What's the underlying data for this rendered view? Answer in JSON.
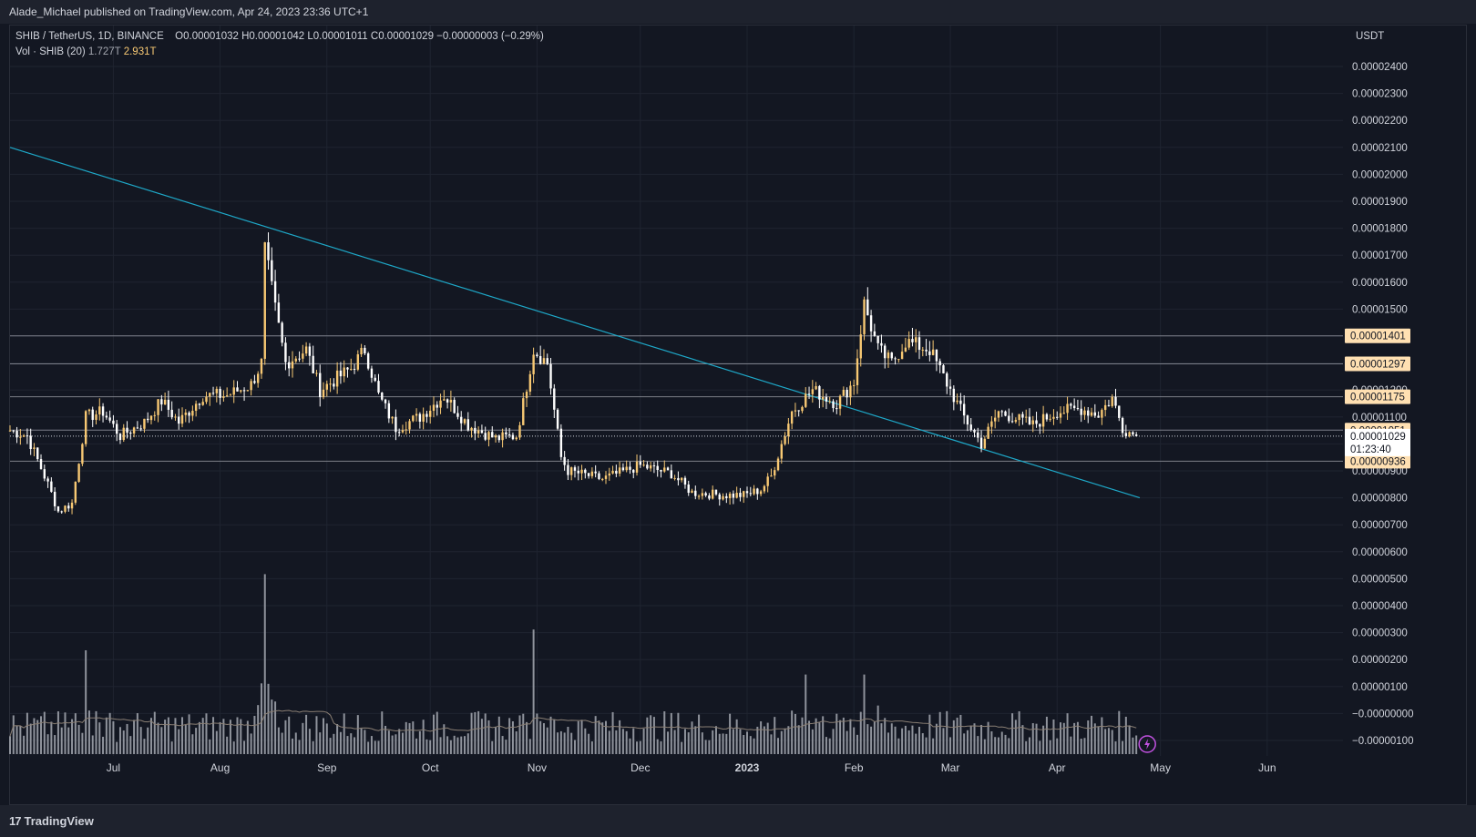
{
  "header": {
    "publisher_text": "Alade_Michael published on TradingView.com, Apr 24, 2023 23:36 UTC+1"
  },
  "legend": {
    "symbol": "SHIB / TetherUS, 1D, BINANCE",
    "open_label": "O",
    "open": "0.00001032",
    "high_label": "H",
    "high": "0.00001042",
    "low_label": "L",
    "low": "0.00001011",
    "close_label": "C",
    "close": "0.00001029",
    "change": "−0.00000003 (−0.29%)",
    "vol_label": "Vol · SHIB (20)",
    "vol_value1": "1.727T",
    "vol_value2": "2.931T"
  },
  "currency": "USDT",
  "footer": {
    "brand": "TradingView",
    "mark": "17"
  },
  "colors": {
    "background": "#131722",
    "grid": "#1f2430",
    "up_candle": "#f7c873",
    "down_candle": "#ffffff",
    "trendline": "#1ea8c8",
    "hline": "#9598a1",
    "label_bg": "#ffe0b2",
    "volume_bar": "#8f939c",
    "volume_ma": "#8a7f74",
    "spark": "#c252e1"
  },
  "chart_data": {
    "type": "candlestick",
    "symbol": "SHIB / TetherUS",
    "interval": "1D",
    "x_range": [
      "2022-06-01",
      "2023-06-23"
    ],
    "x_ticks": [
      "Jul",
      "Aug",
      "Sep",
      "Oct",
      "Nov",
      "Dec",
      "2023",
      "Feb",
      "Mar",
      "Apr",
      "May",
      "Jun"
    ],
    "y_range": [
      -1e-07,
      2.5e-05
    ],
    "y_ticks": [
      "0.00002400",
      "0.00002300",
      "0.00002200",
      "0.00002100",
      "0.00002000",
      "0.00001900",
      "0.00001800",
      "0.00001700",
      "0.00001600",
      "0.00001500",
      "0.00001400",
      "0.00001300",
      "0.00001200",
      "0.00001100",
      "0.00001000",
      "0.00000900",
      "0.00000800",
      "0.00000700",
      "0.00000600",
      "0.00000500",
      "0.00000400",
      "0.00000300",
      "0.00000200",
      "0.00000100",
      "−0.00000000",
      "−0.00000100"
    ],
    "close_anchors": [
      [
        "2022-06-01",
        1.05e-05
      ],
      [
        "2022-06-06",
        1.03e-05
      ],
      [
        "2022-06-12",
        8.5e-06
      ],
      [
        "2022-06-15",
        7.5e-06
      ],
      [
        "2022-06-19",
        7.8e-06
      ],
      [
        "2022-06-23",
        1.1e-05
      ],
      [
        "2022-06-28",
        1.12e-05
      ],
      [
        "2022-07-03",
        1.03e-05
      ],
      [
        "2022-07-10",
        1.08e-05
      ],
      [
        "2022-07-15",
        1.16e-05
      ],
      [
        "2022-07-20",
        1.08e-05
      ],
      [
        "2022-07-27",
        1.18e-05
      ],
      [
        "2022-08-03",
        1.18e-05
      ],
      [
        "2022-08-10",
        1.22e-05
      ],
      [
        "2022-08-13",
        1.3e-05
      ],
      [
        "2022-08-14",
        1.72e-05
      ],
      [
        "2022-08-17",
        1.5e-05
      ],
      [
        "2022-08-20",
        1.3e-05
      ],
      [
        "2022-08-26",
        1.35e-05
      ],
      [
        "2022-08-30",
        1.2e-05
      ],
      [
        "2022-09-08",
        1.28e-05
      ],
      [
        "2022-09-12",
        1.35e-05
      ],
      [
        "2022-09-16",
        1.18e-05
      ],
      [
        "2022-09-21",
        1.06e-05
      ],
      [
        "2022-09-28",
        1.1e-05
      ],
      [
        "2022-10-05",
        1.18e-05
      ],
      [
        "2022-10-12",
        1.07e-05
      ],
      [
        "2022-10-20",
        1.02e-05
      ],
      [
        "2022-10-26",
        1.03e-05
      ],
      [
        "2022-10-28",
        1.15e-05
      ],
      [
        "2022-10-31",
        1.35e-05
      ],
      [
        "2022-11-04",
        1.3e-05
      ],
      [
        "2022-11-08",
        9.5e-06
      ],
      [
        "2022-11-10",
        9e-06
      ],
      [
        "2022-11-20",
        8.7e-06
      ],
      [
        "2022-12-01",
        9.2e-06
      ],
      [
        "2022-12-10",
        8.9e-06
      ],
      [
        "2022-12-16",
        8.2e-06
      ],
      [
        "2022-12-25",
        8.1e-06
      ],
      [
        "2022-12-31",
        8.1e-06
      ],
      [
        "2023-01-05",
        8.3e-06
      ],
      [
        "2023-01-08",
        8.8e-06
      ],
      [
        "2023-01-14",
        1.12e-05
      ],
      [
        "2023-01-20",
        1.2e-05
      ],
      [
        "2023-01-27",
        1.15e-05
      ],
      [
        "2023-02-01",
        1.23e-05
      ],
      [
        "2023-02-04",
        1.52e-05
      ],
      [
        "2023-02-08",
        1.35e-05
      ],
      [
        "2023-02-12",
        1.3e-05
      ],
      [
        "2023-02-16",
        1.38e-05
      ],
      [
        "2023-02-23",
        1.35e-05
      ],
      [
        "2023-03-01",
        1.2e-05
      ],
      [
        "2023-03-05",
        1.1e-05
      ],
      [
        "2023-03-10",
        1e-05
      ],
      [
        "2023-03-15",
        1.12e-05
      ],
      [
        "2023-03-25",
        1.07e-05
      ],
      [
        "2023-04-01",
        1.12e-05
      ],
      [
        "2023-04-08",
        1.13e-05
      ],
      [
        "2023-04-13",
        1.11e-05
      ],
      [
        "2023-04-17",
        1.17e-05
      ],
      [
        "2023-04-20",
        1.06e-05
      ],
      [
        "2023-04-24",
        1.029e-05
      ]
    ],
    "volume_spikes_T": [
      [
        "2022-06-23",
        3.0
      ],
      [
        "2022-08-14",
        5.2
      ],
      [
        "2022-10-31",
        3.6
      ],
      [
        "2023-01-18",
        2.3
      ],
      [
        "2023-02-04",
        2.3
      ]
    ],
    "horizontal_levels": [
      "0.00001401",
      "0.00001297",
      "0.00001175",
      "0.00001051",
      "0.00000936"
    ],
    "current_price": "0.00001029",
    "countdown": "01:23:40",
    "trendline": {
      "from": [
        "2022-06-01",
        2.1e-05
      ],
      "to": [
        "2023-04-25",
        8e-06
      ]
    },
    "volume_indicator": "Vol · SHIB (20)",
    "grid": true
  }
}
